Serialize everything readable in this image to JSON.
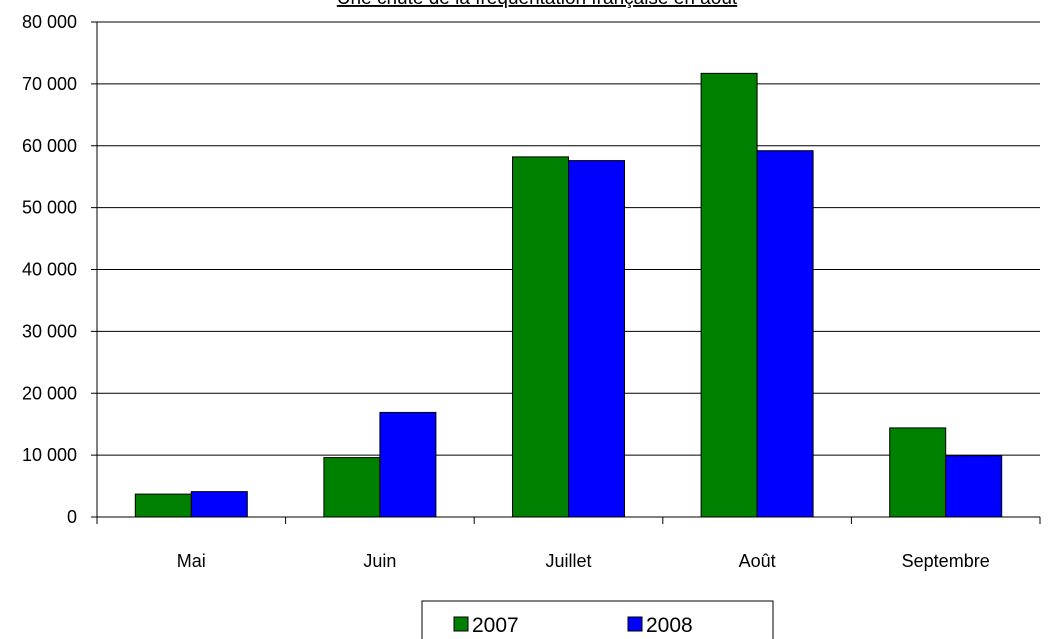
{
  "chart_data": {
    "type": "bar",
    "title": "Une chute de la fréquentation française en août",
    "categories": [
      "Mai",
      "Juin",
      "Juillet",
      "Août",
      "Septembre"
    ],
    "series": [
      {
        "name": "2007",
        "color": "#008000",
        "values": [
          3700,
          9600,
          58200,
          71700,
          14400
        ]
      },
      {
        "name": "2008",
        "color": "#0000ff",
        "values": [
          4100,
          16900,
          57600,
          59200,
          9900
        ]
      }
    ],
    "y_ticks": [
      "0",
      "10 000",
      "20 000",
      "30 000",
      "40 000",
      "50 000",
      "60 000",
      "70 000",
      "80 000"
    ],
    "ylim": [
      0,
      80000
    ],
    "xlabel": "",
    "ylabel": "",
    "grid": true,
    "legend_position": "bottom-center"
  }
}
